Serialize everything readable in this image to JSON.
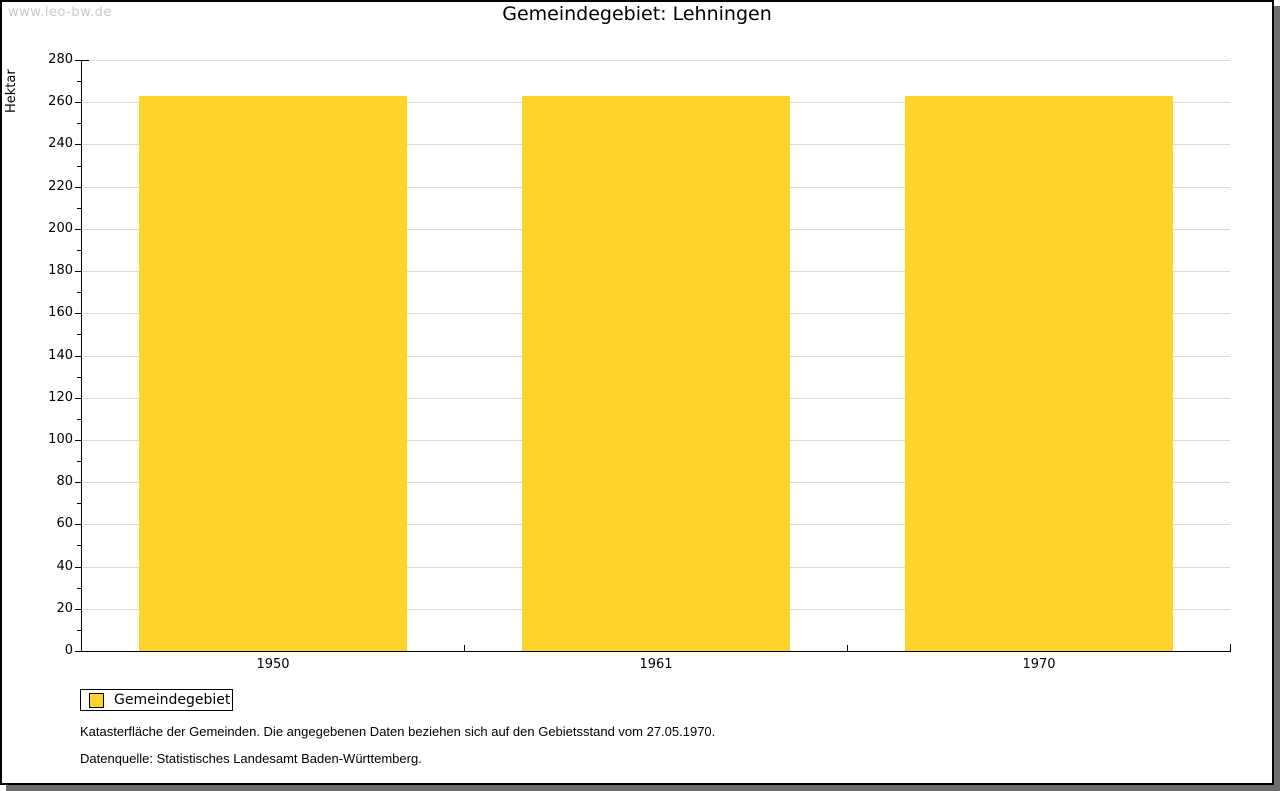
{
  "watermark": "www.leo-bw.de",
  "title": "Gemeindegebiet: Lehningen",
  "chart_data": {
    "type": "bar",
    "categories": [
      "1950",
      "1961",
      "1970"
    ],
    "series": [
      {
        "name": "Gemeindegebiet",
        "values": [
          263,
          263,
          263
        ]
      }
    ],
    "title": "Gemeindegebiet: Lehningen",
    "xlabel": "",
    "ylabel": "Hektar",
    "ylim": [
      0,
      280
    ],
    "ytick_step": 20,
    "ytick_minor_step": 10,
    "grid": "horizontal-major",
    "bar_color": "#fdd32c",
    "gridline_color": "#d9d9d9",
    "axis_color": "#000000",
    "legend": {
      "position": "bottom-left",
      "entries": [
        {
          "label": "Gemeindegebiet",
          "color": "#fdd32c"
        }
      ]
    }
  },
  "footnotes": [
    "Katasterfläche der Gemeinden. Die angegebenen Daten beziehen sich auf den Gebietsstand vom 27.05.1970.",
    "Datenquelle: Statistisches Landesamt Baden-Württemberg."
  ]
}
